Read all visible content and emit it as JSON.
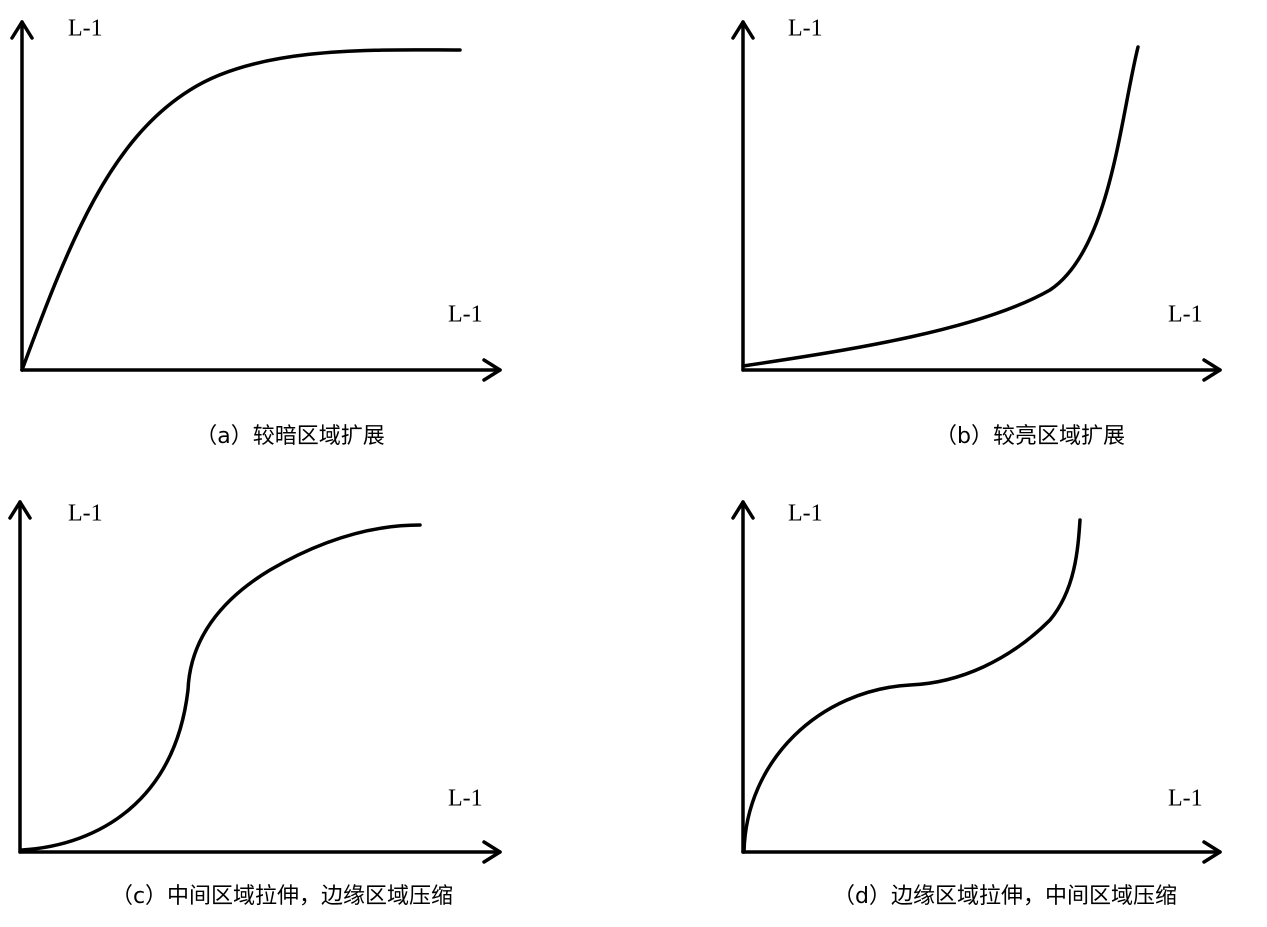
{
  "panels": [
    {
      "y_axis_label": "L-1",
      "x_axis_label": "L-1",
      "caption": "（a）较暗区域扩展"
    },
    {
      "y_axis_label": "L-1",
      "x_axis_label": "L-1",
      "caption": "（b）较亮区域扩展"
    },
    {
      "y_axis_label": "L-1",
      "x_axis_label": "L-1",
      "caption": "（c）中间区域拉伸，边缘区域压缩"
    },
    {
      "y_axis_label": "L-1",
      "x_axis_label": "L-1",
      "caption": "（d）边缘区域拉伸，中间区域压缩"
    }
  ]
}
